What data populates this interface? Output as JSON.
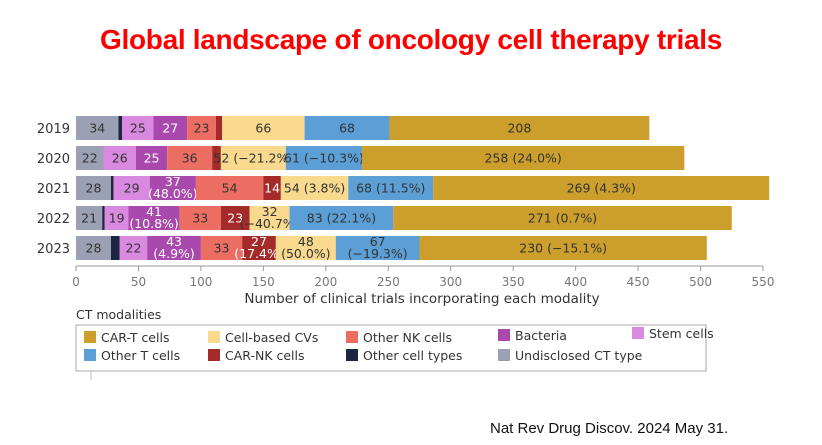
{
  "title": "Global landscape of oncology cell therapy trials",
  "citation": "Nat Rev Drug Discov. 2024 May 31.",
  "chart_data": {
    "type": "bar",
    "orientation": "horizontal",
    "stacked": true,
    "title": "",
    "xlabel": "Number of clinical trials incorporating each modality",
    "ylabel": "",
    "xlim": [
      0,
      550
    ],
    "xticks": [
      0,
      50,
      100,
      150,
      200,
      250,
      300,
      350,
      400,
      450,
      500,
      550
    ],
    "categories": [
      "2019",
      "2020",
      "2021",
      "2022",
      "2023"
    ],
    "legend_title": "CT modalities",
    "legend_position": "bottom",
    "series": [
      {
        "name": "Undisclosed CT type",
        "color": "#9ba1b4",
        "values": [
          34,
          22,
          28,
          21,
          28
        ],
        "labels": [
          "34",
          "22",
          "28",
          "21",
          "28"
        ],
        "label_color": "#333333"
      },
      {
        "name": "Other cell types",
        "color": "#1c2640",
        "values": [
          3,
          0,
          2,
          2,
          7
        ],
        "labels": [
          "",
          "",
          "",
          "",
          ""
        ],
        "label_color": "#ffffff"
      },
      {
        "name": "Stem cells",
        "color": "#d98ae0",
        "values": [
          25,
          26,
          29,
          19,
          22
        ],
        "labels": [
          "25",
          "26",
          "29",
          "19",
          "22"
        ],
        "label_color": "#333333"
      },
      {
        "name": "Bacteria",
        "color": "#a948ad",
        "values": [
          27,
          25,
          37,
          41,
          43
        ],
        "labels": [
          "27",
          "25",
          "37|(48.0%)",
          "41|(10.8%)",
          "43|(4.9%)"
        ],
        "label_color": "#ffffff"
      },
      {
        "name": "Other NK cells",
        "color": "#ec6e62",
        "values": [
          23,
          36,
          54,
          33,
          33
        ],
        "labels": [
          "23",
          "36",
          "54",
          "33",
          "33"
        ],
        "label_color": "#333333"
      },
      {
        "name": "CAR-NK cells",
        "color": "#a52a2a",
        "values": [
          5,
          7,
          14,
          23,
          27
        ],
        "labels": [
          "",
          "",
          "14",
          "23",
          "27|(17.4%)"
        ],
        "label_color": "#ffffff"
      },
      {
        "name": "Cell-based CVs",
        "color": "#f8d98e",
        "values": [
          66,
          52,
          54,
          32,
          48
        ],
        "labels": [
          "66",
          "52 (−21.2%)",
          "54 (3.8%)",
          "32|(−40.7%)",
          "48|(50.0%)"
        ],
        "label_color": "#333333"
      },
      {
        "name": "Other T cells",
        "color": "#5b9fd6",
        "values": [
          68,
          61,
          68,
          83,
          67
        ],
        "labels": [
          "68",
          "61 (−10.3%)",
          "68 (11.5%)",
          "83 (22.1%)",
          "67|(−19.3%)"
        ],
        "label_color": "#333333"
      },
      {
        "name": "CAR-T cells",
        "color": "#cc9e2b",
        "values": [
          208,
          258,
          269,
          271,
          230
        ],
        "labels": [
          "208",
          "258 (24.0%)",
          "269 (4.3%)",
          "271 (0.7%)",
          "230 (−15.1%)"
        ],
        "label_color": "#333333"
      }
    ],
    "legend": [
      {
        "name": "CAR-T cells",
        "color": "#cc9e2b"
      },
      {
        "name": "Cell-based CVs",
        "color": "#f8d98e"
      },
      {
        "name": "Other NK cells",
        "color": "#ec6e62"
      },
      {
        "name": "Bacteria",
        "color": "#a948ad"
      },
      {
        "name": "Stem cells",
        "color": "#d98ae0"
      },
      {
        "name": "Other T cells",
        "color": "#5b9fd6"
      },
      {
        "name": "CAR-NK cells",
        "color": "#a52a2a"
      },
      {
        "name": "Other cell types",
        "color": "#1c2640"
      },
      {
        "name": "Undisclosed CT type",
        "color": "#9ba1b4"
      }
    ]
  }
}
